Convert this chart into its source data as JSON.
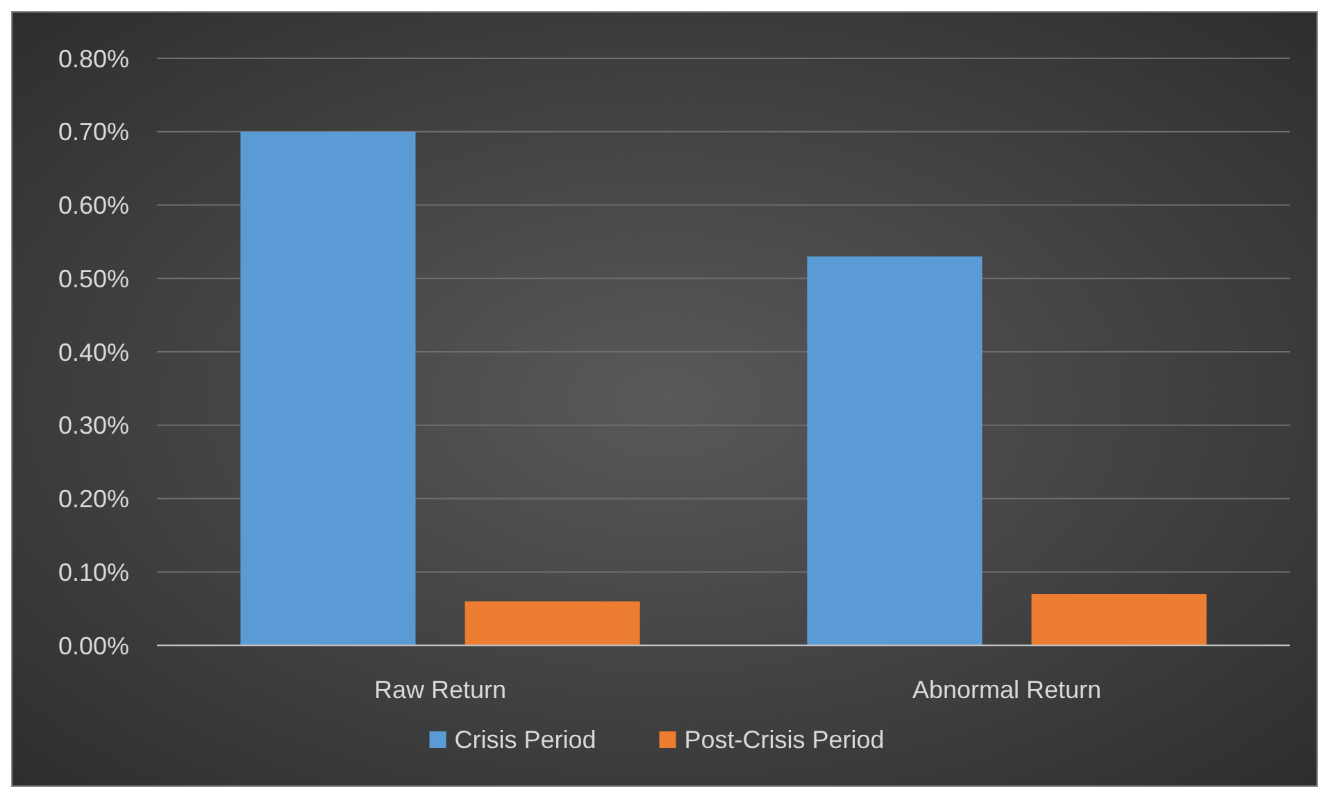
{
  "chart_data": {
    "type": "bar",
    "categories": [
      "Raw Return",
      "Abnormal Return"
    ],
    "series": [
      {
        "name": "Crisis Period",
        "color": "#5b9bd5",
        "values": [
          0.7,
          0.53
        ]
      },
      {
        "name": "Post-Crisis Period",
        "color": "#ed7d31",
        "values": [
          0.06,
          0.07
        ]
      }
    ],
    "ylim": [
      0,
      0.8
    ],
    "yticks": [
      {
        "value": 0,
        "label": "0.00%"
      },
      {
        "value": 0.1,
        "label": "0.10%"
      },
      {
        "value": 0.2,
        "label": "0.20%"
      },
      {
        "value": 0.3,
        "label": "0.30%"
      },
      {
        "value": 0.4,
        "label": "0.40%"
      },
      {
        "value": 0.5,
        "label": "0.50%"
      },
      {
        "value": 0.6,
        "label": "0.60%"
      },
      {
        "value": 0.7,
        "label": "0.70%"
      },
      {
        "value": 0.8,
        "label": "0.80%"
      }
    ],
    "grid": "y",
    "legend": "bottom"
  }
}
